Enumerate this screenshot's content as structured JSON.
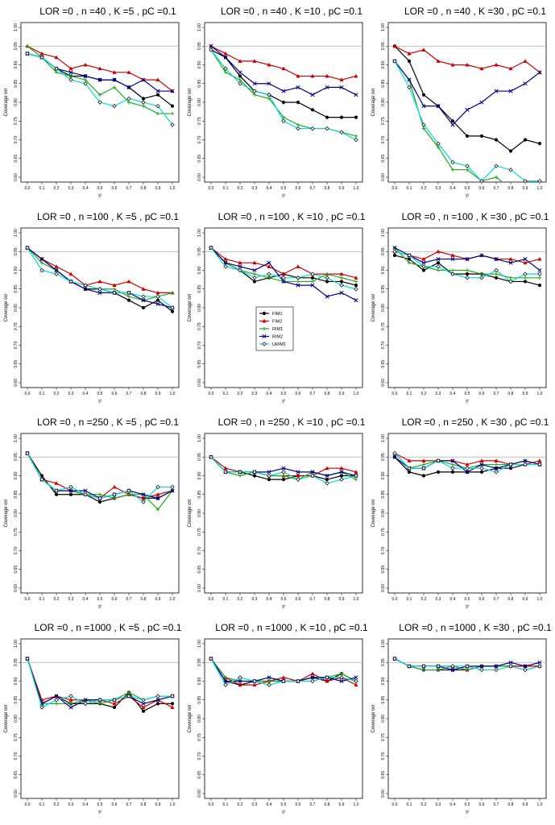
{
  "chart_data": {
    "type": "line",
    "ylabel": "Coverage orr",
    "xlabel": "τ²",
    "x": [
      0.0,
      0.1,
      0.2,
      0.3,
      0.4,
      0.5,
      0.6,
      0.7,
      0.8,
      0.9,
      1.0
    ],
    "x_ticks": [
      "0.0",
      "0.1",
      "0.2",
      "0.3",
      "0.4",
      "0.5",
      "0.6",
      "0.7",
      "0.8",
      "0.9",
      "1.0"
    ],
    "y_ticks": [
      "0.60",
      "0.65",
      "0.70",
      "0.75",
      "0.80",
      "0.85",
      "0.90",
      "0.95",
      "1.00"
    ],
    "ylim": [
      0.6,
      1.0
    ],
    "reference_line": 0.95,
    "grid": false,
    "legend": {
      "placement": "inside panel row 2, column 2",
      "entries": [
        "FIM1",
        "FIM2",
        "RIM1",
        "RIM2",
        "URIM1"
      ]
    },
    "series_styles": [
      {
        "color": "#000000",
        "marker": "circle"
      },
      {
        "color": "#cc0000",
        "marker": "triangle"
      },
      {
        "color": "#22aa22",
        "marker": "plus"
      },
      {
        "color": "#000088",
        "marker": "cross"
      },
      {
        "color": "#00dddd",
        "marker": "diamond"
      }
    ],
    "panels": [
      {
        "title": "LOR =0 , n =40 , K =5 , pC =0.1",
        "series": [
          {
            "values": [
              0.93,
              0.92,
              0.89,
              0.87,
              0.87,
              0.86,
              0.86,
              0.84,
              0.81,
              0.82,
              0.79
            ]
          },
          {
            "values": [
              0.95,
              0.93,
              0.92,
              0.89,
              0.9,
              0.89,
              0.88,
              0.88,
              0.86,
              0.86,
              0.83
            ]
          },
          {
            "values": [
              0.95,
              0.92,
              0.88,
              0.87,
              0.86,
              0.82,
              0.84,
              0.8,
              0.79,
              0.77,
              0.77
            ]
          },
          {
            "values": [
              0.93,
              0.92,
              0.89,
              0.88,
              0.87,
              0.86,
              0.86,
              0.84,
              0.86,
              0.83,
              0.83
            ]
          },
          {
            "values": [
              0.93,
              0.92,
              0.89,
              0.86,
              0.85,
              0.8,
              0.79,
              0.81,
              0.8,
              0.79,
              0.74
            ]
          }
        ]
      },
      {
        "title": "LOR =0 , n =40 , K =10 , pC =0.1",
        "series": [
          {
            "values": [
              0.94,
              0.92,
              0.87,
              0.83,
              0.82,
              0.8,
              0.8,
              0.78,
              0.76,
              0.76,
              0.76
            ]
          },
          {
            "values": [
              0.95,
              0.93,
              0.91,
              0.91,
              0.9,
              0.89,
              0.87,
              0.87,
              0.87,
              0.86,
              0.87
            ]
          },
          {
            "values": [
              0.94,
              0.88,
              0.86,
              0.82,
              0.81,
              0.76,
              0.74,
              0.73,
              0.73,
              0.72,
              0.71
            ]
          },
          {
            "values": [
              0.95,
              0.92,
              0.88,
              0.85,
              0.85,
              0.83,
              0.84,
              0.82,
              0.84,
              0.84,
              0.82
            ]
          },
          {
            "values": [
              0.94,
              0.89,
              0.85,
              0.83,
              0.82,
              0.75,
              0.73,
              0.73,
              0.73,
              0.72,
              0.7
            ]
          }
        ]
      },
      {
        "title": "LOR =0 , n =40 , K =30 , pC =0.1",
        "series": [
          {
            "values": [
              0.95,
              0.91,
              0.82,
              0.79,
              0.75,
              0.71,
              0.71,
              0.7,
              0.67,
              0.7,
              0.69
            ]
          },
          {
            "values": [
              0.95,
              0.93,
              0.94,
              0.91,
              0.9,
              0.9,
              0.89,
              0.9,
              0.89,
              0.91,
              0.88
            ]
          },
          {
            "values": [
              0.91,
              0.86,
              0.73,
              0.68,
              0.62,
              0.62,
              0.59,
              0.6,
              0.57,
              0.58,
              0.58
            ]
          },
          {
            "values": [
              0.91,
              0.86,
              0.79,
              0.79,
              0.74,
              0.78,
              0.8,
              0.83,
              0.83,
              0.85,
              0.88
            ]
          },
          {
            "values": [
              0.91,
              0.84,
              0.74,
              0.69,
              0.64,
              0.63,
              0.59,
              0.63,
              0.62,
              0.59,
              0.59
            ]
          }
        ]
      },
      {
        "title": "LOR =0 , n =100 , K =5 , pC =0.1",
        "series": [
          {
            "values": [
              0.96,
              0.93,
              0.9,
              0.87,
              0.85,
              0.85,
              0.84,
              0.82,
              0.8,
              0.82,
              0.79
            ]
          },
          {
            "values": [
              0.96,
              0.93,
              0.91,
              0.89,
              0.86,
              0.87,
              0.86,
              0.87,
              0.85,
              0.84,
              0.84
            ]
          },
          {
            "values": [
              0.96,
              0.92,
              0.9,
              0.87,
              0.86,
              0.85,
              0.85,
              0.83,
              0.82,
              0.83,
              0.84
            ]
          },
          {
            "values": [
              0.96,
              0.93,
              0.9,
              0.87,
              0.85,
              0.84,
              0.84,
              0.84,
              0.82,
              0.81,
              0.8
            ]
          },
          {
            "values": [
              0.96,
              0.9,
              0.89,
              0.87,
              0.86,
              0.85,
              0.84,
              0.84,
              0.83,
              0.83,
              0.8
            ]
          }
        ]
      },
      {
        "title": "LOR =0 , n =100 , K =10 , pC =0.1",
        "series": [
          {
            "values": [
              0.96,
              0.92,
              0.9,
              0.87,
              0.88,
              0.89,
              0.88,
              0.88,
              0.87,
              0.87,
              0.86
            ]
          },
          {
            "values": [
              0.96,
              0.93,
              0.92,
              0.92,
              0.91,
              0.89,
              0.91,
              0.89,
              0.89,
              0.89,
              0.88
            ]
          },
          {
            "values": [
              0.96,
              0.92,
              0.9,
              0.89,
              0.88,
              0.87,
              0.87,
              0.87,
              0.89,
              0.88,
              0.87
            ]
          },
          {
            "values": [
              0.96,
              0.92,
              0.91,
              0.9,
              0.92,
              0.87,
              0.86,
              0.86,
              0.83,
              0.84,
              0.82
            ]
          },
          {
            "values": [
              0.96,
              0.91,
              0.9,
              0.88,
              0.89,
              0.88,
              0.88,
              0.89,
              0.88,
              0.86,
              0.85
            ]
          }
        ]
      },
      {
        "title": "LOR =0 , n =100 , K =30 , pC =0.1",
        "series": [
          {
            "values": [
              0.94,
              0.93,
              0.9,
              0.92,
              0.89,
              0.89,
              0.89,
              0.88,
              0.87,
              0.87,
              0.86
            ]
          },
          {
            "values": [
              0.95,
              0.94,
              0.93,
              0.95,
              0.94,
              0.93,
              0.94,
              0.93,
              0.93,
              0.92,
              0.93
            ]
          },
          {
            "values": [
              0.96,
              0.92,
              0.91,
              0.9,
              0.9,
              0.9,
              0.89,
              0.89,
              0.88,
              0.88,
              0.88
            ]
          },
          {
            "values": [
              0.96,
              0.94,
              0.92,
              0.93,
              0.93,
              0.93,
              0.94,
              0.93,
              0.92,
              0.93,
              0.9
            ]
          },
          {
            "values": [
              0.95,
              0.94,
              0.91,
              0.91,
              0.89,
              0.88,
              0.88,
              0.9,
              0.87,
              0.89,
              0.89
            ]
          }
        ]
      },
      {
        "title": "LOR =0 , n =250 , K =5 , pC =0.1",
        "series": [
          {
            "values": [
              0.96,
              0.9,
              0.85,
              0.85,
              0.85,
              0.83,
              0.84,
              0.85,
              0.84,
              0.84,
              0.86
            ]
          },
          {
            "values": [
              0.96,
              0.89,
              0.88,
              0.86,
              0.85,
              0.84,
              0.87,
              0.85,
              0.84,
              0.85,
              0.86
            ]
          },
          {
            "values": [
              0.96,
              0.89,
              0.86,
              0.86,
              0.85,
              0.85,
              0.84,
              0.85,
              0.85,
              0.81,
              0.86
            ]
          },
          {
            "values": [
              0.96,
              0.89,
              0.86,
              0.86,
              0.86,
              0.84,
              0.85,
              0.86,
              0.85,
              0.84,
              0.86
            ]
          },
          {
            "values": [
              0.96,
              0.89,
              0.86,
              0.87,
              0.85,
              0.84,
              0.85,
              0.86,
              0.83,
              0.87,
              0.87
            ]
          }
        ]
      },
      {
        "title": "LOR =0 , n =250 , K =10 , pC =0.1",
        "series": [
          {
            "values": [
              0.95,
              0.91,
              0.91,
              0.9,
              0.89,
              0.89,
              0.9,
              0.9,
              0.89,
              0.9,
              0.9
            ]
          },
          {
            "values": [
              0.95,
              0.92,
              0.91,
              0.91,
              0.9,
              0.9,
              0.9,
              0.9,
              0.92,
              0.92,
              0.91
            ]
          },
          {
            "values": [
              0.95,
              0.91,
              0.9,
              0.91,
              0.9,
              0.9,
              0.89,
              0.91,
              0.9,
              0.91,
              0.89
            ]
          },
          {
            "values": [
              0.95,
              0.91,
              0.91,
              0.91,
              0.91,
              0.92,
              0.91,
              0.91,
              0.9,
              0.91,
              0.9
            ]
          },
          {
            "values": [
              0.95,
              0.91,
              0.91,
              0.91,
              0.9,
              0.91,
              0.89,
              0.9,
              0.88,
              0.89,
              0.9
            ]
          }
        ]
      },
      {
        "title": "LOR =0 , n =250 , K =30 , pC =0.1",
        "series": [
          {
            "values": [
              0.95,
              0.91,
              0.9,
              0.91,
              0.91,
              0.91,
              0.91,
              0.92,
              0.92,
              0.93,
              0.93
            ]
          },
          {
            "values": [
              0.96,
              0.94,
              0.94,
              0.94,
              0.94,
              0.93,
              0.94,
              0.94,
              0.93,
              0.93,
              0.94
            ]
          },
          {
            "values": [
              0.96,
              0.92,
              0.93,
              0.94,
              0.93,
              0.92,
              0.93,
              0.93,
              0.93,
              0.94,
              0.93
            ]
          },
          {
            "values": [
              0.95,
              0.92,
              0.92,
              0.94,
              0.94,
              0.91,
              0.93,
              0.92,
              0.93,
              0.94,
              0.93
            ]
          },
          {
            "values": [
              0.96,
              0.92,
              0.92,
              0.94,
              0.92,
              0.92,
              0.92,
              0.91,
              0.93,
              0.93,
              0.93
            ]
          }
        ]
      },
      {
        "title": "LOR =0 , n =1000 , K =5 , pC =0.1",
        "series": [
          {
            "values": [
              0.96,
              0.84,
              0.86,
              0.84,
              0.84,
              0.84,
              0.83,
              0.87,
              0.82,
              0.84,
              0.84
            ]
          },
          {
            "values": [
              0.96,
              0.85,
              0.86,
              0.85,
              0.85,
              0.85,
              0.84,
              0.86,
              0.83,
              0.85,
              0.83
            ]
          },
          {
            "values": [
              0.96,
              0.84,
              0.84,
              0.84,
              0.85,
              0.84,
              0.85,
              0.87,
              0.85,
              0.86,
              0.86
            ]
          },
          {
            "values": [
              0.96,
              0.84,
              0.86,
              0.83,
              0.85,
              0.85,
              0.85,
              0.86,
              0.84,
              0.85,
              0.86
            ]
          },
          {
            "values": [
              0.96,
              0.83,
              0.85,
              0.86,
              0.84,
              0.85,
              0.85,
              0.86,
              0.85,
              0.86,
              0.86
            ]
          }
        ]
      },
      {
        "title": "LOR =0 , n =1000 , K =10 , pC =0.1",
        "series": [
          {
            "values": [
              0.96,
              0.9,
              0.89,
              0.9,
              0.9,
              0.9,
              0.9,
              0.91,
              0.9,
              0.92,
              0.9
            ]
          },
          {
            "values": [
              0.96,
              0.91,
              0.89,
              0.89,
              0.9,
              0.91,
              0.9,
              0.92,
              0.9,
              0.91,
              0.89
            ]
          },
          {
            "values": [
              0.96,
              0.91,
              0.9,
              0.9,
              0.9,
              0.9,
              0.9,
              0.91,
              0.91,
              0.92,
              0.9
            ]
          },
          {
            "values": [
              0.96,
              0.9,
              0.9,
              0.9,
              0.91,
              0.9,
              0.9,
              0.91,
              0.91,
              0.9,
              0.91
            ]
          },
          {
            "values": [
              0.96,
              0.89,
              0.91,
              0.9,
              0.89,
              0.9,
              0.9,
              0.9,
              0.91,
              0.91,
              0.9
            ]
          }
        ]
      },
      {
        "title": "LOR =0 , n =1000 , K =30 , pC =0.1",
        "series": [
          {
            "values": [
              0.96,
              0.94,
              0.93,
              0.93,
              0.93,
              0.93,
              0.94,
              0.94,
              0.94,
              0.94,
              0.94
            ]
          },
          {
            "values": [
              0.96,
              0.94,
              0.94,
              0.94,
              0.94,
              0.93,
              0.94,
              0.94,
              0.94,
              0.94,
              0.94
            ]
          },
          {
            "values": [
              0.96,
              0.94,
              0.93,
              0.93,
              0.94,
              0.93,
              0.94,
              0.94,
              0.94,
              0.93,
              0.94
            ]
          },
          {
            "values": [
              0.96,
              0.94,
              0.94,
              0.94,
              0.93,
              0.94,
              0.94,
              0.94,
              0.95,
              0.94,
              0.95
            ]
          },
          {
            "values": [
              0.96,
              0.94,
              0.94,
              0.94,
              0.94,
              0.94,
              0.93,
              0.93,
              0.94,
              0.93,
              0.94
            ]
          }
        ]
      }
    ]
  }
}
